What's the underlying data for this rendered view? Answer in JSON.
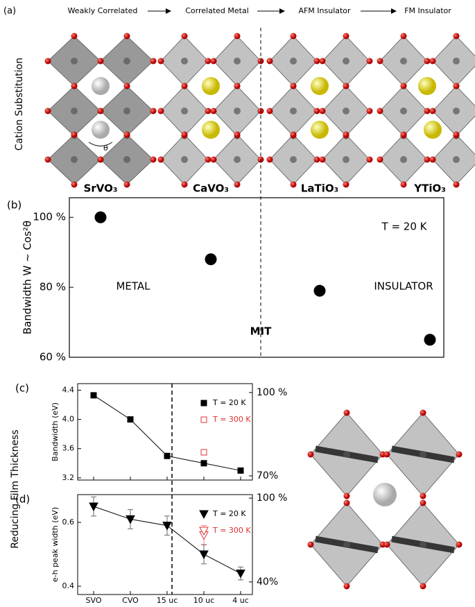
{
  "figure": {
    "panels": [
      "(a)",
      "(b)",
      "(c)",
      "(d)"
    ],
    "header": [
      "Weakly Correlated",
      "Correlated Metal",
      "AFM Insulator",
      "FM Insulator"
    ],
    "side_labels": [
      "Cation Substitution",
      "Reducing Film Thickness"
    ],
    "angle_label": "θ"
  },
  "chart_data": [
    {
      "type": "scatter",
      "categories": [
        "SrVO₃",
        "CaVO₃",
        "LaTiO₃",
        "YTiO₃"
      ],
      "ylabel": "Bandwidth W ~ Cos²θ",
      "values": [
        100,
        88,
        79,
        65
      ],
      "color": "#000000",
      "ylim": [
        60,
        105.6
      ],
      "yticks": [
        {
          "value": 60,
          "label": "60 %"
        },
        {
          "value": 80,
          "label": "80 %"
        },
        {
          "value": 100,
          "label": "100 %"
        }
      ],
      "annotations": [
        "T = 20 K",
        "METAL",
        "INSULATOR",
        "MIT"
      ]
    },
    {
      "type": "line",
      "ylabel": "Bandwidth (eV)",
      "ylim": [
        3.17,
        4.49
      ],
      "yticks": [
        3.2,
        3.6,
        {
          "value": 4,
          "label": "4.0"
        },
        4.4
      ],
      "y2lim": [
        68.5,
        103.2
      ],
      "y2ticks": [
        {
          "value": 70,
          "label": "70%"
        },
        {
          "value": 100,
          "label": "100 %"
        }
      ],
      "series": [
        {
          "name": "T = 20 K",
          "color": "#000000",
          "marker": "square",
          "values": [
            4.33,
            4.0,
            3.5,
            3.4,
            3.3
          ]
        },
        {
          "name": "T = 300 K",
          "color": "#e03030",
          "marker": "square-open",
          "values": [
            null,
            null,
            null,
            3.55,
            null
          ]
        }
      ]
    },
    {
      "type": "line",
      "ylabel": "e-h peak width (eV)",
      "categories": [
        "SVO",
        "CVO",
        "15 uc",
        "10 uc",
        "4 uc"
      ],
      "ylim": [
        0.374,
        0.687
      ],
      "yticks": [
        0.4,
        0.6
      ],
      "y2lim": [
        31,
        102.5
      ],
      "y2ticks": [
        {
          "value": 40,
          "label": "40%"
        },
        {
          "value": 100,
          "label": "100 %"
        }
      ],
      "series": [
        {
          "name": "T = 20 K",
          "color": "#000000",
          "marker": "triangle",
          "values": [
            0.65,
            0.61,
            0.59,
            0.5,
            0.44
          ],
          "errors": [
            0.03,
            0.03,
            0.03,
            0.03,
            0.02
          ]
        },
        {
          "name": "T = 300 K",
          "color": "#e03030",
          "marker": "triangle-open",
          "values": [
            null,
            null,
            null,
            0.56,
            null
          ],
          "errors": [
            null,
            null,
            null,
            0.03,
            null
          ]
        }
      ]
    }
  ]
}
